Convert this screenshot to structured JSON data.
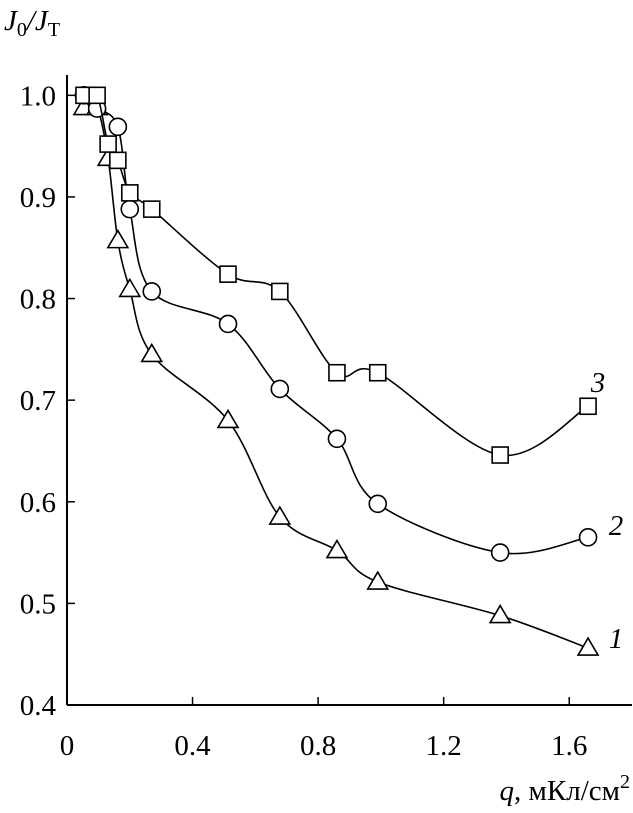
{
  "chart_data": {
    "type": "line",
    "y_label": [
      "J",
      "0",
      "/J",
      "T"
    ],
    "x_label": [
      "q",
      ", мКл/см",
      "2"
    ],
    "xlim": [
      0,
      1.8
    ],
    "ylim": [
      0.4,
      1.02
    ],
    "xticks": [
      0,
      0.4,
      0.8,
      1.2,
      1.6
    ],
    "yticks": [
      0.4,
      0.5,
      0.6,
      0.7,
      0.8,
      0.9,
      {
        "value": 1,
        "label": "1.0"
      }
    ],
    "color": "#000000",
    "series": [
      {
        "name": "1",
        "marker": "triangle",
        "x": [
          0.054,
          0.096,
          0.131,
          0.162,
          0.2,
          0.27,
          0.513,
          0.678,
          0.86,
          0.99,
          1.38,
          1.66
        ],
        "values": [
          0.988,
          0.988,
          0.938,
          0.857,
          0.809,
          0.745,
          0.68,
          0.585,
          0.552,
          0.521,
          0.488,
          0.456
        ]
      },
      {
        "name": "2",
        "marker": "circle",
        "x": [
          0.054,
          0.096,
          0.162,
          0.2,
          0.27,
          0.513,
          0.678,
          0.86,
          0.99,
          1.38,
          1.66
        ],
        "values": [
          1.0,
          0.987,
          0.969,
          0.888,
          0.807,
          0.775,
          0.711,
          0.662,
          0.598,
          0.55,
          0.565
        ]
      },
      {
        "name": "3",
        "marker": "square",
        "x": [
          0.054,
          0.096,
          0.131,
          0.162,
          0.2,
          0.27,
          0.513,
          0.678,
          0.86,
          0.99,
          1.38,
          1.66
        ],
        "values": [
          1.0,
          1.0,
          0.952,
          0.936,
          0.904,
          0.888,
          0.824,
          0.807,
          0.727,
          0.727,
          0.646,
          0.694
        ]
      }
    ]
  }
}
